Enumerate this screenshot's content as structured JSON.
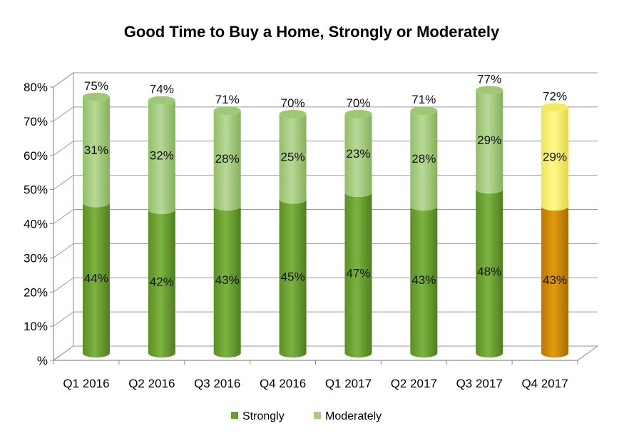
{
  "chart_data": {
    "type": "bar",
    "stacked": true,
    "title": "Good Time to Buy a Home, Strongly or Moderately",
    "xlabel": "",
    "ylabel": "",
    "categories": [
      "Q1 2016",
      "Q2 2016",
      "Q3 2016",
      "Q4 2016",
      "Q1 2017",
      "Q2 2017",
      "Q3 2017",
      "Q4 2017"
    ],
    "series": [
      {
        "name": "Strongly",
        "values": [
          44,
          42,
          43,
          45,
          47,
          43,
          48,
          43
        ],
        "labels": [
          "44%",
          "42%",
          "43%",
          "45%",
          "47%",
          "43%",
          "48%",
          "43%"
        ],
        "color": "#6a9f2c"
      },
      {
        "name": "Moderately",
        "values": [
          31,
          32,
          28,
          25,
          23,
          28,
          29,
          29
        ],
        "labels": [
          "31%",
          "32%",
          "28%",
          "25%",
          "23%",
          "28%",
          "29%",
          "29%"
        ],
        "color": "#a6cc7e"
      }
    ],
    "totals": [
      75,
      74,
      71,
      70,
      70,
      71,
      77,
      72
    ],
    "total_labels": [
      "75%",
      "74%",
      "71%",
      "70%",
      "70%",
      "71%",
      "77%",
      "72%"
    ],
    "highlight": {
      "index": 7,
      "strongly_color": "#cc8a00",
      "moderately_color": "#f7f06a"
    },
    "yticks": [
      0,
      10,
      20,
      30,
      40,
      50,
      60,
      70,
      80
    ],
    "ytick_labels": [
      "%",
      "10%",
      "20%",
      "30%",
      "40%",
      "50%",
      "60%",
      "70%",
      "80%"
    ],
    "ylim": [
      0,
      80
    ],
    "grid": true,
    "legend_position": "bottom"
  }
}
